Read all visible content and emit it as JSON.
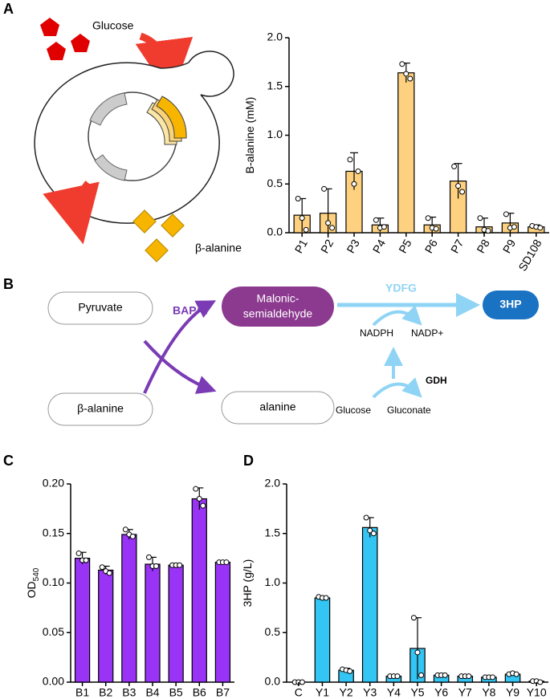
{
  "panel_labels": [
    "A",
    "B",
    "C",
    "D"
  ],
  "diagram_a": {
    "substrate": "Glucose",
    "product": "β-alanine"
  },
  "diagram_b": {
    "nodes": [
      "Pyruvate",
      "β-alanine",
      "Malonic-",
      "semialdehyde",
      "alanine",
      "3HP"
    ],
    "enzymes": [
      "BAPAT",
      "YDFG",
      "GDH"
    ],
    "cofactors": [
      "NADPH",
      "NADP+",
      "Glucose",
      "Gluconate"
    ]
  },
  "chart_data": [
    {
      "type": "bar",
      "ylabel": "B-alanine (mM)",
      "color": "#fdd17f",
      "categories": [
        "P1",
        "P2",
        "P3",
        "P4",
        "P5",
        "P6",
        "P7",
        "P8",
        "P9",
        "SD108"
      ],
      "values": [
        0.18,
        0.2,
        0.63,
        0.08,
        1.64,
        0.08,
        0.53,
        0.06,
        0.1,
        0.06
      ],
      "errors": [
        0.17,
        0.25,
        0.19,
        0.07,
        0.1,
        0.08,
        0.18,
        0.09,
        0.1,
        0.02
      ],
      "points": [
        [
          0.35,
          0.15,
          0.03
        ],
        [
          0.45,
          0.1,
          0.05
        ],
        [
          0.75,
          0.5,
          0.63
        ],
        [
          0.13,
          0.05,
          0.06
        ],
        [
          1.73,
          1.63,
          1.58
        ],
        [
          0.15,
          0.05,
          0.04
        ],
        [
          0.68,
          0.48,
          0.42
        ],
        [
          0.15,
          0.03,
          0.02
        ],
        [
          0.19,
          0.05,
          0.06
        ],
        [
          0.07,
          0.06,
          0.05
        ]
      ],
      "ylim": [
        0,
        2
      ],
      "yticks": [
        {
          "value": 0,
          "label": "0.0"
        },
        {
          "value": 0.5,
          "label": "0.5"
        },
        {
          "value": 1,
          "label": "1.0"
        },
        {
          "value": 1.5,
          "label": "1.5"
        },
        {
          "value": 2,
          "label": "2.0"
        }
      ]
    },
    {
      "type": "bar",
      "ylabel": "OD",
      "ylabel_sub": "540",
      "color": "#9933f5",
      "categories": [
        "B1",
        "B2",
        "B3",
        "B4",
        "B5",
        "B6",
        "B7"
      ],
      "values": [
        0.125,
        0.113,
        0.149,
        0.119,
        0.118,
        0.185,
        0.121
      ],
      "errors": [
        0.006,
        0.004,
        0.005,
        0.007,
        0.001,
        0.011,
        0.001
      ],
      "points": [
        [
          0.13,
          0.123,
          0.123
        ],
        [
          0.116,
          0.112,
          0.11
        ],
        [
          0.154,
          0.149,
          0.147
        ],
        [
          0.126,
          0.117,
          0.117
        ],
        [
          0.118,
          0.118,
          0.118
        ],
        [
          0.195,
          0.185,
          0.178
        ],
        [
          0.121,
          0.121,
          0.121
        ]
      ],
      "ylim": [
        0,
        0.2
      ],
      "yticks": [
        {
          "value": 0,
          "label": "0.00"
        },
        {
          "value": 0.05,
          "label": "0.05"
        },
        {
          "value": 0.1,
          "label": "0.10"
        },
        {
          "value": 0.15,
          "label": "0.15"
        },
        {
          "value": 0.2,
          "label": "0.20"
        }
      ]
    },
    {
      "type": "bar",
      "ylabel": "3HP (g/L)",
      "color": "#33c5f3",
      "categories": [
        "C",
        "Y1",
        "Y2",
        "Y3",
        "Y4",
        "Y5",
        "Y6",
        "Y7",
        "Y8",
        "Y9",
        "Y10"
      ],
      "values": [
        0,
        0.85,
        0.12,
        1.56,
        0.06,
        0.34,
        0.07,
        0.06,
        0.05,
        0.08,
        0.01
      ],
      "errors": [
        0,
        0.01,
        0.02,
        0.1,
        0,
        0.31,
        0,
        0,
        0,
        0.01,
        0.01
      ],
      "points": [
        [
          0,
          0,
          0
        ],
        [
          0.86,
          0.85,
          0.85
        ],
        [
          0.13,
          0.12,
          0.11
        ],
        [
          1.66,
          1.53,
          1.5
        ],
        [
          0.06,
          0.06,
          0.06
        ],
        [
          0.65,
          0.3,
          0.07
        ],
        [
          0.07,
          0.07,
          0.07
        ],
        [
          0.06,
          0.06,
          0.06
        ],
        [
          0.05,
          0.05,
          0.05
        ],
        [
          0.08,
          0.09,
          0.08
        ],
        [
          0.01,
          0.01,
          0
        ]
      ],
      "ylim": [
        0,
        2
      ],
      "yticks": [
        {
          "value": 0,
          "label": "0.0"
        },
        {
          "value": 0.5,
          "label": "0.5"
        },
        {
          "value": 1,
          "label": "1.0"
        },
        {
          "value": 1.5,
          "label": "1.5"
        },
        {
          "value": 2,
          "label": "2.0"
        }
      ]
    }
  ]
}
